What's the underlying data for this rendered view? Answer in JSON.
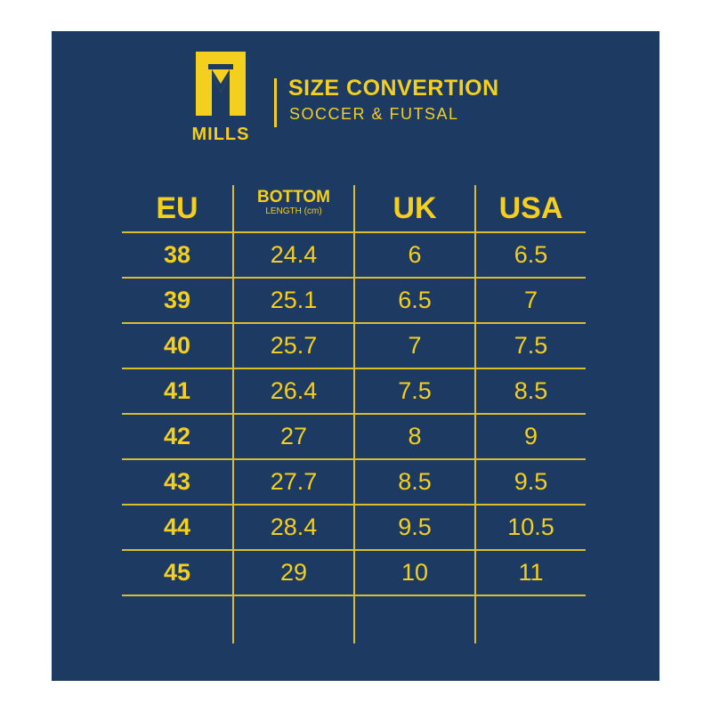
{
  "brand": {
    "name": "MILLS",
    "accent_color": "#f5cf1d",
    "background_color": "#1d3a63"
  },
  "header": {
    "title": "SIZE CONVERTION",
    "subtitle": "SOCCER & FUTSAL"
  },
  "table": {
    "columns": {
      "eu": "EU",
      "bottom": "BOTTOM",
      "bottom_sub": "LENGTH (cm)",
      "uk": "UK",
      "usa": "USA"
    },
    "rows": [
      {
        "eu": "38",
        "cm": "24.4",
        "uk": "6",
        "usa": "6.5"
      },
      {
        "eu": "39",
        "cm": "25.1",
        "uk": "6.5",
        "usa": "7"
      },
      {
        "eu": "40",
        "cm": "25.7",
        "uk": "7",
        "usa": "7.5"
      },
      {
        "eu": "41",
        "cm": "26.4",
        "uk": "7.5",
        "usa": "8.5"
      },
      {
        "eu": "42",
        "cm": "27",
        "uk": "8",
        "usa": "9"
      },
      {
        "eu": "43",
        "cm": "27.7",
        "uk": "8.5",
        "usa": "9.5"
      },
      {
        "eu": "44",
        "cm": "28.4",
        "uk": "9.5",
        "usa": "10.5"
      },
      {
        "eu": "45",
        "cm": "29",
        "uk": "10",
        "usa": "11"
      }
    ]
  }
}
